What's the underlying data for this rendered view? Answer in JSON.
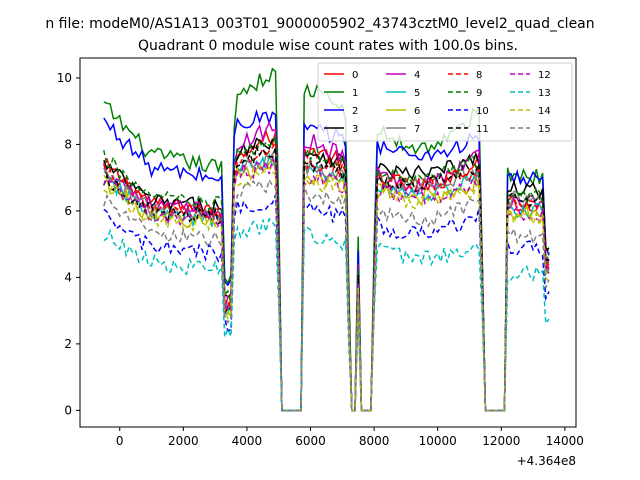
{
  "chart_data": {
    "type": "line",
    "suptitle": "n file: modeM0/AS1A13_003T01_9000005902_43743cztM0_level2_quad_clean",
    "title": "Quadrant 0 module wise count rates with 100.0s bins.",
    "xlabel": "",
    "ylabel": "",
    "offset_text": "+4.364e8",
    "xlim": [
      -1250,
      14350
    ],
    "ylim": [
      -0.5,
      10.6
    ],
    "x_ticks": [
      0,
      2000,
      4000,
      6000,
      8000,
      10000,
      12000,
      14000
    ],
    "x_tick_labels": [
      "0",
      "2000",
      "4000",
      "6000",
      "8000",
      "10000",
      "12000",
      "14000"
    ],
    "y_ticks": [
      0,
      2,
      4,
      6,
      8,
      10
    ],
    "y_tick_labels": [
      "0",
      "2",
      "4",
      "6",
      "8",
      "10"
    ],
    "grid": false,
    "legend_placement": "top-right",
    "gaps": [
      {
        "start": 5100,
        "end": 5700
      },
      {
        "start": 7300,
        "end": 7400
      },
      {
        "start": 7550,
        "end": 7950
      },
      {
        "start": 11500,
        "end": 12100
      }
    ],
    "x_range": [
      -500,
      13500
    ],
    "series": [
      {
        "name": "0",
        "color": "#ff0000",
        "style": "solid",
        "base_start": 7.4,
        "base_end": 6.7,
        "peak": 8.3
      },
      {
        "name": "1",
        "color": "#008000",
        "style": "solid",
        "base_start": 9.2,
        "base_end": 7.6,
        "peak": 10.2
      },
      {
        "name": "2",
        "color": "#0000ff",
        "style": "solid",
        "base_start": 8.7,
        "base_end": 7.5,
        "peak": 8.9
      },
      {
        "name": "3",
        "color": "#000000",
        "style": "solid",
        "base_start": 7.4,
        "base_end": 7.2,
        "peak": 8.2
      },
      {
        "name": "4",
        "color": "#bf00bf",
        "style": "solid",
        "base_start": 7.3,
        "base_end": 6.8,
        "peak": 8.6
      },
      {
        "name": "5",
        "color": "#00bfbf",
        "style": "solid",
        "base_start": 7.0,
        "base_end": 6.5,
        "peak": 7.6
      },
      {
        "name": "6",
        "color": "#bfbf00",
        "style": "solid",
        "base_start": 6.9,
        "base_end": 6.4,
        "peak": 7.4
      },
      {
        "name": "7",
        "color": "#808080",
        "style": "solid",
        "base_start": 7.1,
        "base_end": 6.9,
        "peak": 7.6
      },
      {
        "name": "8",
        "color": "#ff0000",
        "style": "dashed",
        "base_start": 7.2,
        "base_end": 6.8,
        "peak": 7.9
      },
      {
        "name": "9",
        "color": "#008000",
        "style": "dashed",
        "base_start": 7.6,
        "base_end": 7.0,
        "peak": 8.1
      },
      {
        "name": "10",
        "color": "#0000ff",
        "style": "dashed",
        "base_start": 5.8,
        "base_end": 5.3,
        "peak": 6.4
      },
      {
        "name": "11",
        "color": "#000000",
        "style": "dashed",
        "base_start": 7.0,
        "base_end": 6.9,
        "peak": 7.9
      },
      {
        "name": "12",
        "color": "#bf00bf",
        "style": "dashed",
        "base_start": 7.0,
        "base_end": 6.4,
        "peak": 7.4
      },
      {
        "name": "13",
        "color": "#00bfbf",
        "style": "dashed",
        "base_start": 5.3,
        "base_end": 4.4,
        "peak": 5.6
      },
      {
        "name": "14",
        "color": "#bfbf00",
        "style": "dashed",
        "base_start": 6.8,
        "base_end": 6.3,
        "peak": 7.2
      },
      {
        "name": "15",
        "color": "#808080",
        "style": "dashed",
        "base_start": 6.3,
        "base_end": 5.7,
        "peak": 6.9
      }
    ]
  }
}
